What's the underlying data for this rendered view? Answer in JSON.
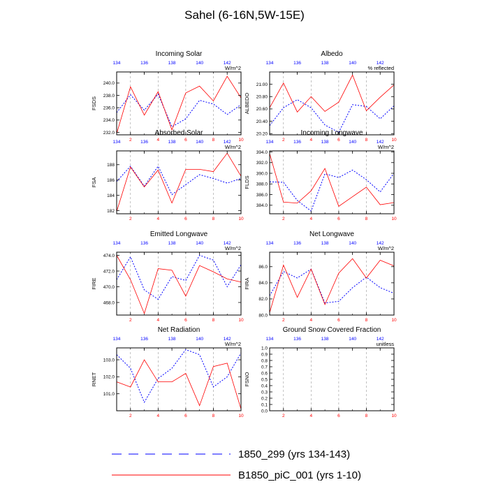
{
  "figure": {
    "title": "Sahel (6-16N,5W-15E)",
    "colors": {
      "series_a": "#0000ff",
      "series_b": "#ff0000",
      "axis": "#000000",
      "grid": "#999999"
    },
    "legend": [
      {
        "label": "1850_299 (yrs 134-143)",
        "style": "dashed",
        "color": "#0000ff"
      },
      {
        "label": "B1850_piC_001 (yrs 1-10)",
        "style": "solid",
        "color": "#ff0000"
      }
    ]
  },
  "chart_data": [
    {
      "type": "line",
      "title": "Incoming Solar",
      "ylabel": "FSDS",
      "units": "W/m^2",
      "x": [
        1,
        2,
        3,
        4,
        5,
        6,
        7,
        8,
        9,
        10
      ],
      "xlim": [
        1,
        10
      ],
      "x_top_ticks": [
        "134",
        "136",
        "138",
        "140",
        "142"
      ],
      "ylim": [
        231.6,
        241.8
      ],
      "yticks": [
        232.0,
        234.0,
        236.0,
        238.0,
        240.0
      ],
      "ytick_labels": [
        "232.0",
        "234.0",
        "236.0",
        "238.0",
        "240.0"
      ],
      "series": [
        {
          "values": [
            235.2,
            238.1,
            235.6,
            238.2,
            232.9,
            234.2,
            237.2,
            236.6,
            234.9,
            236.5
          ]
        },
        {
          "values": [
            231.8,
            239.4,
            234.8,
            238.6,
            232.4,
            238.4,
            239.5,
            237.1,
            241.1,
            237.6
          ]
        }
      ]
    },
    {
      "type": "line",
      "title": "Albedo",
      "ylabel": "ALBEDO",
      "units": "% reflected",
      "x": [
        1,
        2,
        3,
        4,
        5,
        6,
        7,
        8,
        9,
        10
      ],
      "xlim": [
        1,
        10
      ],
      "x_top_ticks": [
        "134",
        "136",
        "138",
        "140",
        "142"
      ],
      "ylim": [
        20.18,
        21.2
      ],
      "yticks": [
        20.2,
        20.4,
        20.6,
        20.8,
        21.0
      ],
      "ytick_labels": [
        "20.20",
        "20.40",
        "20.60",
        "20.80",
        "21.00"
      ],
      "series": [
        {
          "values": [
            20.33,
            20.62,
            20.75,
            20.62,
            20.34,
            20.22,
            20.67,
            20.64,
            20.44,
            20.65
          ]
        },
        {
          "values": [
            20.62,
            21.02,
            20.55,
            20.8,
            20.56,
            20.71,
            21.15,
            20.57,
            20.79,
            20.99
          ]
        }
      ]
    },
    {
      "type": "line",
      "title": "Absorbed Solar",
      "ylabel": "FSA",
      "units": "W/m^2",
      "x": [
        1,
        2,
        3,
        4,
        5,
        6,
        7,
        8,
        9,
        10
      ],
      "xlim": [
        1,
        10
      ],
      "x_top_ticks": [
        "134",
        "136",
        "138",
        "140",
        "142"
      ],
      "ylim": [
        181.6,
        189.8
      ],
      "yticks": [
        182,
        184,
        186,
        188
      ],
      "ytick_labels": [
        "182",
        "184",
        "186",
        "188"
      ],
      "series": [
        {
          "values": [
            185.8,
            187.8,
            185.2,
            187.8,
            184.1,
            185.4,
            186.7,
            186.2,
            185.6,
            186.2
          ]
        },
        {
          "values": [
            181.9,
            187.7,
            185.1,
            187.3,
            183.0,
            187.4,
            187.4,
            187.1,
            189.5,
            186.5
          ]
        }
      ]
    },
    {
      "type": "line",
      "title": "Incoming Longwave",
      "ylabel": "FLDS",
      "units": "W/m^2",
      "x": [
        1,
        2,
        3,
        4,
        5,
        6,
        7,
        8,
        9,
        10
      ],
      "xlim": [
        1,
        10
      ],
      "x_top_ticks": [
        "134",
        "136",
        "138",
        "140",
        "142"
      ],
      "ylim": [
        382.4,
        394.2
      ],
      "yticks": [
        384.0,
        386.0,
        388.0,
        390.0,
        392.0,
        394.0
      ],
      "ytick_labels": [
        "384.0",
        "386.0",
        "388.0",
        "390.0",
        "392.0",
        "394.0"
      ],
      "series": [
        {
          "values": [
            388.4,
            388.3,
            384.9,
            382.9,
            389.9,
            389.2,
            390.6,
            388.8,
            386.5,
            390.0
          ]
        },
        {
          "values": [
            393.7,
            384.6,
            384.4,
            386.7,
            390.9,
            383.8,
            385.6,
            387.4,
            384.1,
            384.5
          ]
        }
      ]
    },
    {
      "type": "line",
      "title": "Emitted Longwave",
      "ylabel": "FIRE",
      "units": "W/m^2",
      "x": [
        1,
        2,
        3,
        4,
        5,
        6,
        7,
        8,
        9,
        10
      ],
      "xlim": [
        1,
        10
      ],
      "x_top_ticks": [
        "134",
        "136",
        "138",
        "140",
        "142"
      ],
      "ylim": [
        466.4,
        474.4
      ],
      "yticks": [
        468.0,
        470.0,
        472.0,
        474.0
      ],
      "ytick_labels": [
        "468.0",
        "470.0",
        "472.0",
        "474.0"
      ],
      "series": [
        {
          "values": [
            470.9,
            473.8,
            469.6,
            468.4,
            471.3,
            470.8,
            474.0,
            473.4,
            470.0,
            472.8
          ]
        },
        {
          "values": [
            474.0,
            470.9,
            466.6,
            472.3,
            472.1,
            468.8,
            472.7,
            471.9,
            471.0,
            470.6
          ]
        }
      ]
    },
    {
      "type": "line",
      "title": "Net Longwave",
      "ylabel": "FIRA",
      "units": "W/m^2",
      "x": [
        1,
        2,
        3,
        4,
        5,
        6,
        7,
        8,
        9,
        10
      ],
      "xlim": [
        1,
        10
      ],
      "x_top_ticks": [
        "134",
        "136",
        "138",
        "140",
        "142"
      ],
      "ylim": [
        80.0,
        87.8
      ],
      "yticks": [
        80.0,
        82.0,
        84.0,
        86.0
      ],
      "ytick_labels": [
        "80.0",
        "82.0",
        "84.0",
        "86.0"
      ],
      "series": [
        {
          "values": [
            82.4,
            85.4,
            84.6,
            85.7,
            81.5,
            81.7,
            83.4,
            84.7,
            83.4,
            82.7
          ]
        },
        {
          "values": [
            80.3,
            86.2,
            82.2,
            85.7,
            81.3,
            85.2,
            87.0,
            84.6,
            86.8,
            86.1
          ]
        }
      ]
    },
    {
      "type": "line",
      "title": "Net Radiation",
      "ylabel": "RNET",
      "units": "W/m^2",
      "x": [
        1,
        2,
        3,
        4,
        5,
        6,
        7,
        8,
        9,
        10
      ],
      "xlim": [
        1,
        10
      ],
      "x_top_ticks": [
        "134",
        "136",
        "138",
        "140",
        "142"
      ],
      "ylim": [
        100.0,
        103.7
      ],
      "yticks": [
        101.0,
        102.0,
        103.0
      ],
      "ytick_labels": [
        "101.0",
        "102.0",
        "103.0"
      ],
      "series": [
        {
          "values": [
            103.3,
            102.5,
            100.5,
            101.9,
            102.5,
            103.6,
            103.3,
            101.4,
            102.0,
            103.4
          ]
        },
        {
          "values": [
            101.7,
            101.4,
            103.0,
            101.7,
            101.7,
            102.2,
            100.3,
            102.6,
            102.8,
            100.1
          ]
        }
      ]
    },
    {
      "type": "line",
      "title": "Ground Snow Covered Fraction",
      "ylabel": "FSNO",
      "units": "unitless",
      "x": [
        1,
        2,
        3,
        4,
        5,
        6,
        7,
        8,
        9,
        10
      ],
      "xlim": [
        1,
        10
      ],
      "x_top_ticks": [
        "134",
        "136",
        "138",
        "140",
        "142"
      ],
      "ylim": [
        0.0,
        1.0
      ],
      "yticks": [
        0.0,
        0.1,
        0.2,
        0.3,
        0.4,
        0.5,
        0.6,
        0.7,
        0.8,
        0.9,
        1.0
      ],
      "ytick_labels": [
        "0.0",
        "0.1",
        "0.2",
        "0.3",
        "0.4",
        "0.5",
        "0.6",
        "0.7",
        "0.8",
        "0.9",
        "1.0"
      ],
      "series": []
    }
  ]
}
